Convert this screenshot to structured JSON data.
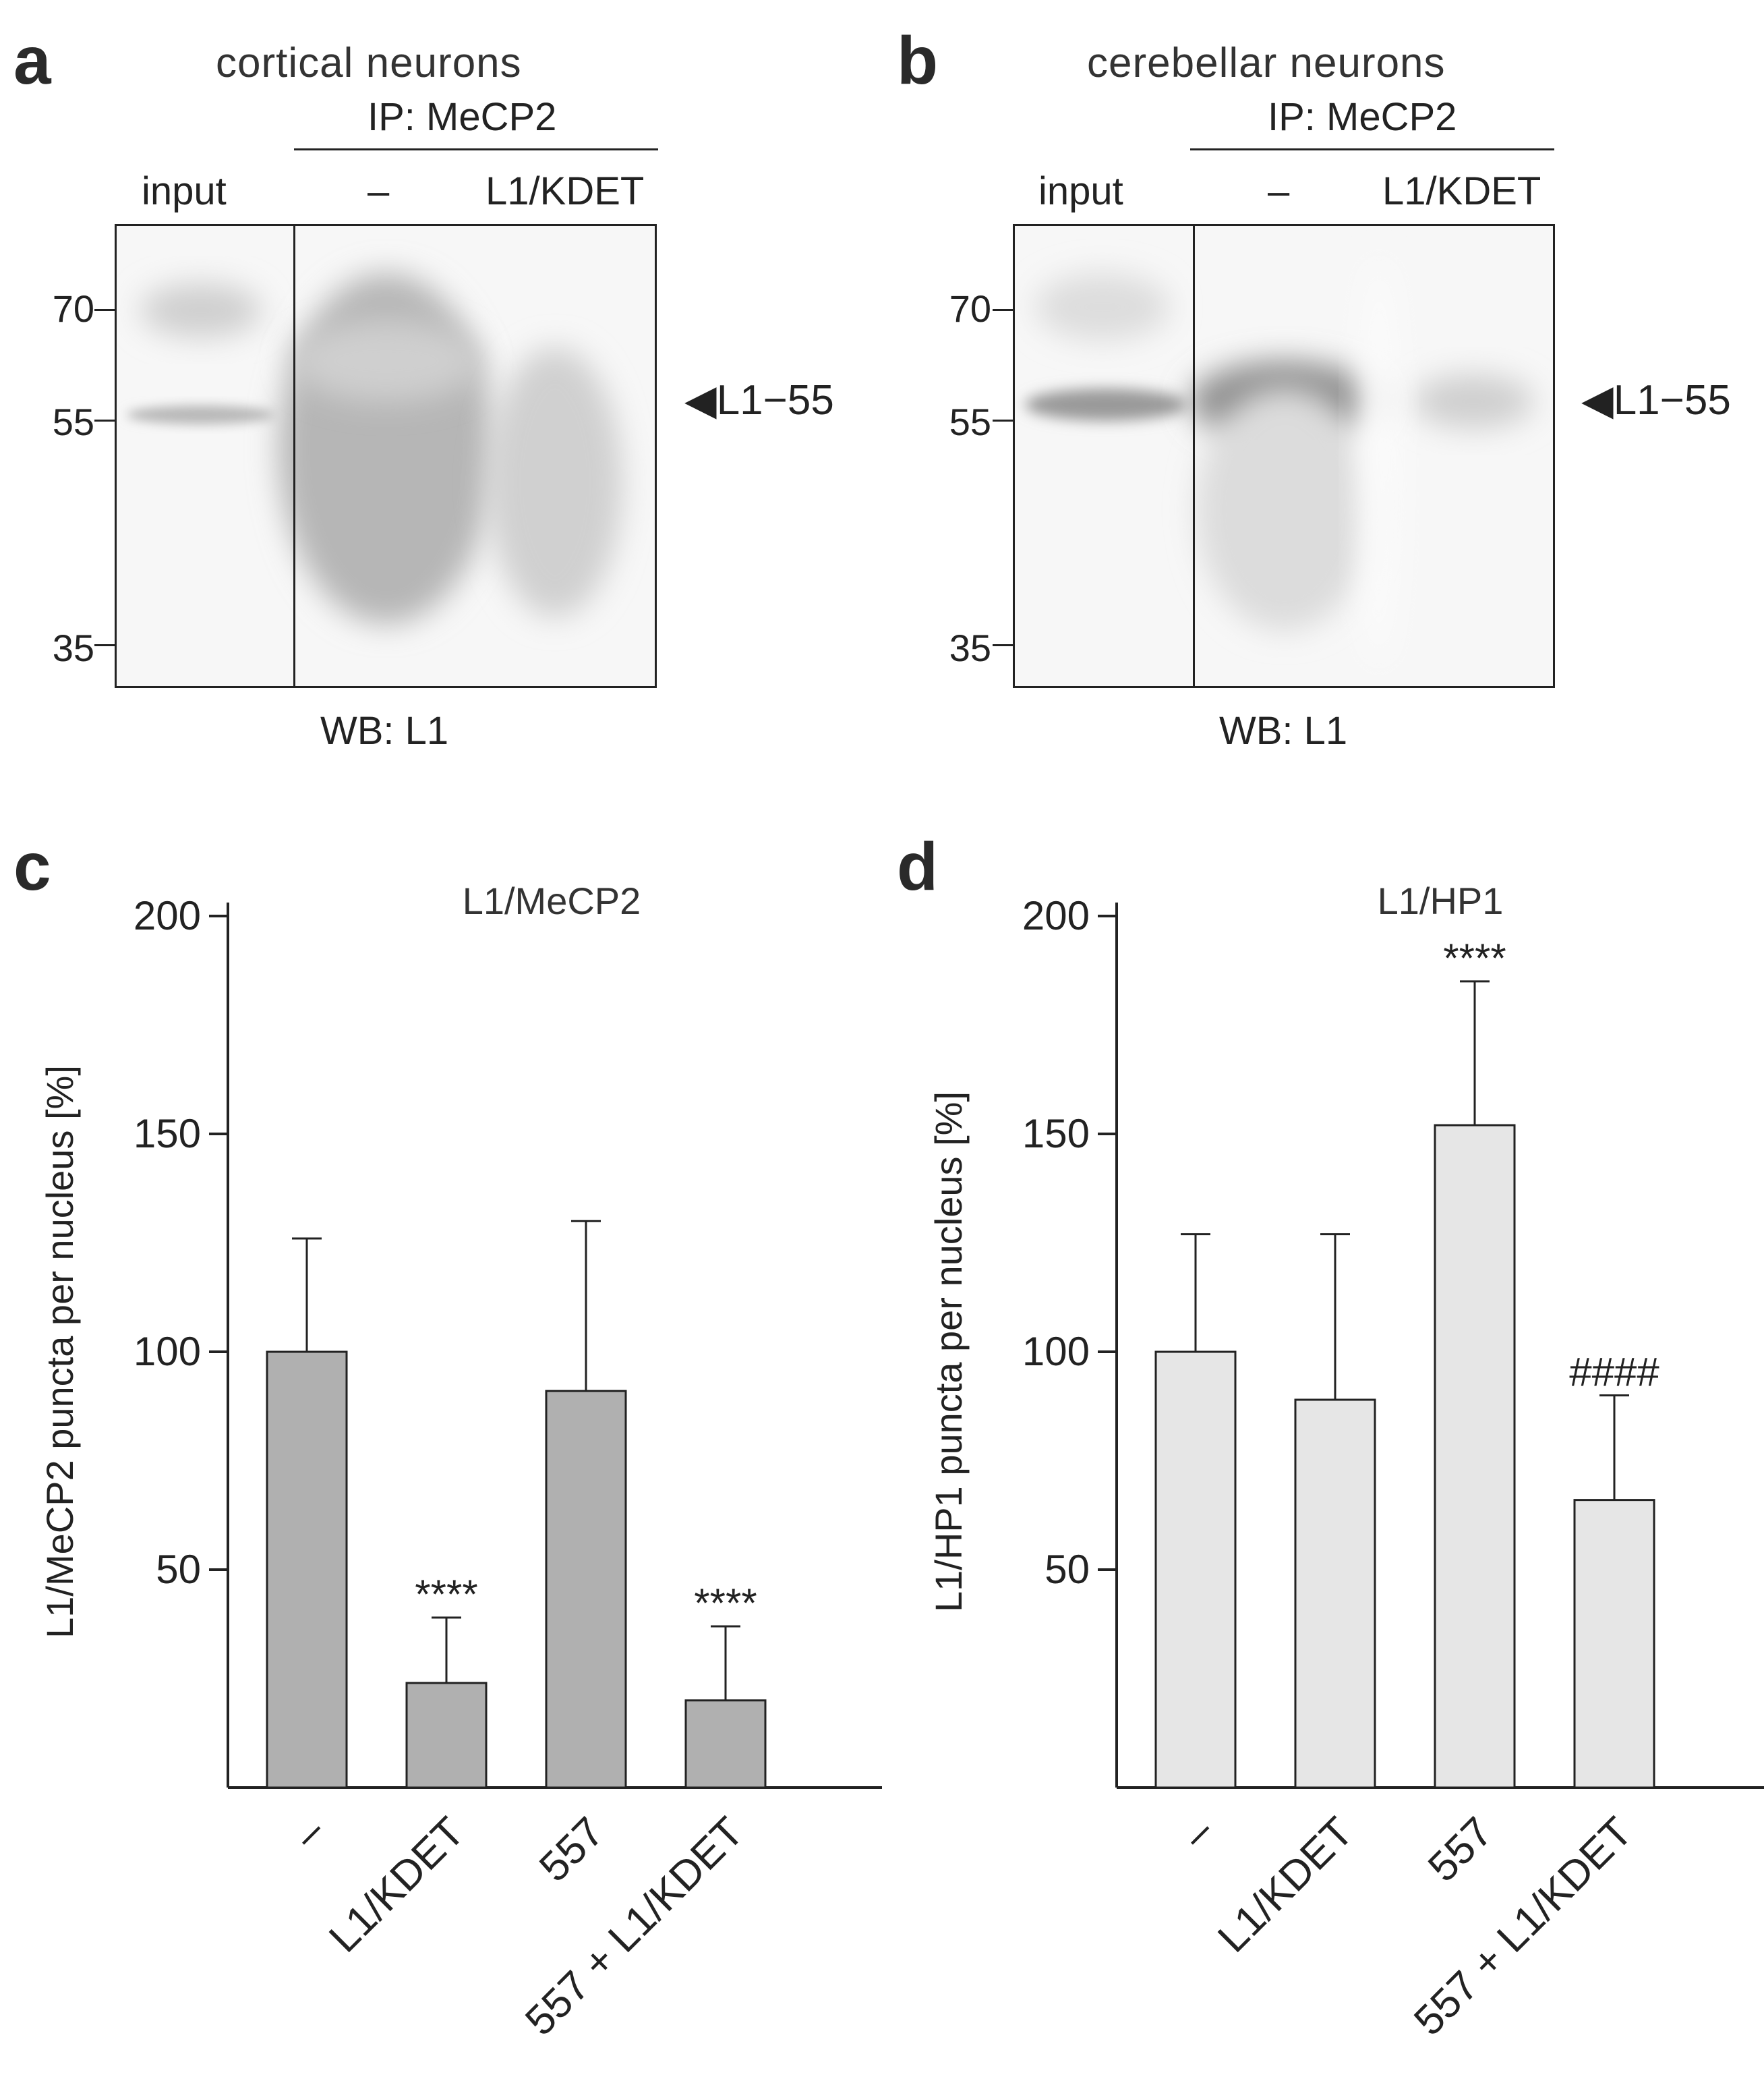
{
  "panels": [
    {
      "label": "a",
      "title": "cortical neurons",
      "ip_label": "IP: MeCP2",
      "lanes": [
        "input",
        "–",
        "L1/KDET"
      ],
      "mw_markers": [
        "70",
        "55",
        "35"
      ],
      "band_label": "L1−55",
      "wb_label": "WB: L1"
    },
    {
      "label": "b",
      "title": "cerebellar neurons",
      "ip_label": "IP: MeCP2",
      "lanes": [
        "input",
        "–",
        "L1/KDET"
      ],
      "mw_markers": [
        "70",
        "55",
        "35"
      ],
      "band_label": "L1−55",
      "wb_label": "WB: L1"
    }
  ],
  "chart_panels": [
    {
      "label": "c"
    },
    {
      "label": "d"
    }
  ],
  "chart_data": [
    {
      "type": "bar",
      "title": "L1/MeCP2",
      "ylabel": "L1/MeCP2 puncta per nucleus [%]",
      "xlabel": "",
      "categories": [
        "–",
        "L1/KDET",
        "557",
        "557 + L1/KDET"
      ],
      "values": [
        100,
        24,
        91,
        20
      ],
      "errors": [
        26,
        15,
        39,
        17
      ],
      "annotations": [
        "",
        "****",
        "",
        "****"
      ],
      "ylim": [
        0,
        200
      ],
      "yticks": [
        50,
        100,
        150,
        200
      ],
      "bar_color": "#b0b0b0",
      "grid": false
    },
    {
      "type": "bar",
      "title": "L1/HP1",
      "ylabel": "L1/HP1 puncta per nucleus [%]",
      "xlabel": "",
      "categories": [
        "–",
        "L1/KDET",
        "557",
        "557 + L1/KDET"
      ],
      "values": [
        100,
        89,
        152,
        66
      ],
      "errors": [
        27,
        38,
        33,
        24
      ],
      "annotations": [
        "",
        "",
        "****",
        "####"
      ],
      "ylim": [
        0,
        200
      ],
      "yticks": [
        50,
        100,
        150,
        200
      ],
      "bar_color": "#e6e6e6",
      "grid": false
    }
  ]
}
